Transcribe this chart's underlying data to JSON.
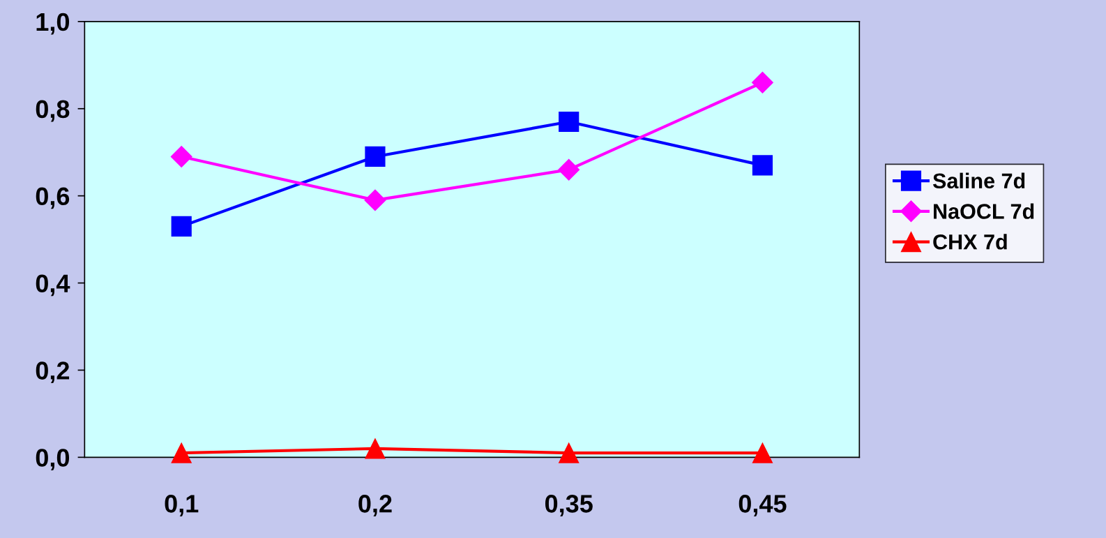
{
  "chart_data": {
    "type": "line",
    "categories": [
      "0,1",
      "0,2",
      "0,35",
      "0,45"
    ],
    "series": [
      {
        "name": "Saline 7d",
        "color": "#0000ff",
        "marker": "square",
        "values": [
          0.53,
          0.69,
          0.77,
          0.67
        ]
      },
      {
        "name": "NaOCL 7d",
        "color": "#ff00ff",
        "marker": "diamond",
        "values": [
          0.69,
          0.59,
          0.66,
          0.86
        ]
      },
      {
        "name": "CHX 7d",
        "color": "#ff0000",
        "marker": "triangle",
        "values": [
          0.01,
          0.02,
          0.01,
          0.01
        ]
      }
    ],
    "ylim": [
      0,
      1
    ],
    "yticks": [
      {
        "value": 0,
        "label": "0,0"
      },
      {
        "value": 0.2,
        "label": "0,2"
      },
      {
        "value": 0.4,
        "label": "0,4"
      },
      {
        "value": 0.6,
        "label": "0,6"
      },
      {
        "value": 0.8,
        "label": "0,8"
      },
      {
        "value": 1,
        "label": "1,0"
      }
    ],
    "grid": false,
    "legend": "right",
    "line_style": "solid"
  }
}
